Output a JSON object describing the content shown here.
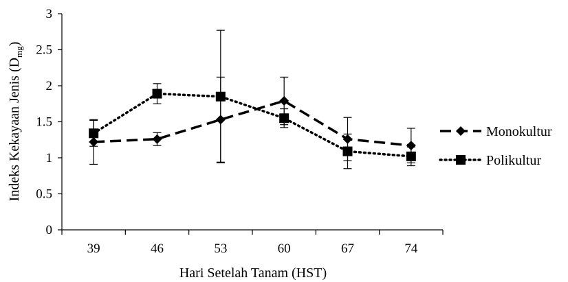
{
  "chart_data": {
    "type": "line",
    "title": "",
    "xlabel": "Hari Setelah Tanam (HST)",
    "ylabel": "Indeks Kekayaan Jenis (D",
    "ylabel_subscript": "mg",
    "ylabel_suffix": ")",
    "categories": [
      "39",
      "46",
      "53",
      "60",
      "67",
      "74"
    ],
    "ylim": [
      0,
      3
    ],
    "yticks": [
      "0",
      "0.5",
      "1",
      "1.5",
      "2",
      "2.5",
      "3"
    ],
    "grid": false,
    "legend_position": "right",
    "series": [
      {
        "name": "Monokultur",
        "values": [
          1.22,
          1.26,
          1.53,
          1.79,
          1.26,
          1.17
        ],
        "error": [
          0.31,
          0.09,
          0.59,
          0.33,
          0.3,
          0.24
        ],
        "marker": "diamond",
        "line_style": "dashed",
        "color": "#000000"
      },
      {
        "name": "Polikultur",
        "values": [
          1.34,
          1.89,
          1.85,
          1.55,
          1.09,
          1.02
        ],
        "error": [
          0.18,
          0.14,
          0.92,
          0.13,
          0.24,
          0.13
        ],
        "marker": "square",
        "line_style": "dotted",
        "color": "#000000"
      }
    ]
  }
}
